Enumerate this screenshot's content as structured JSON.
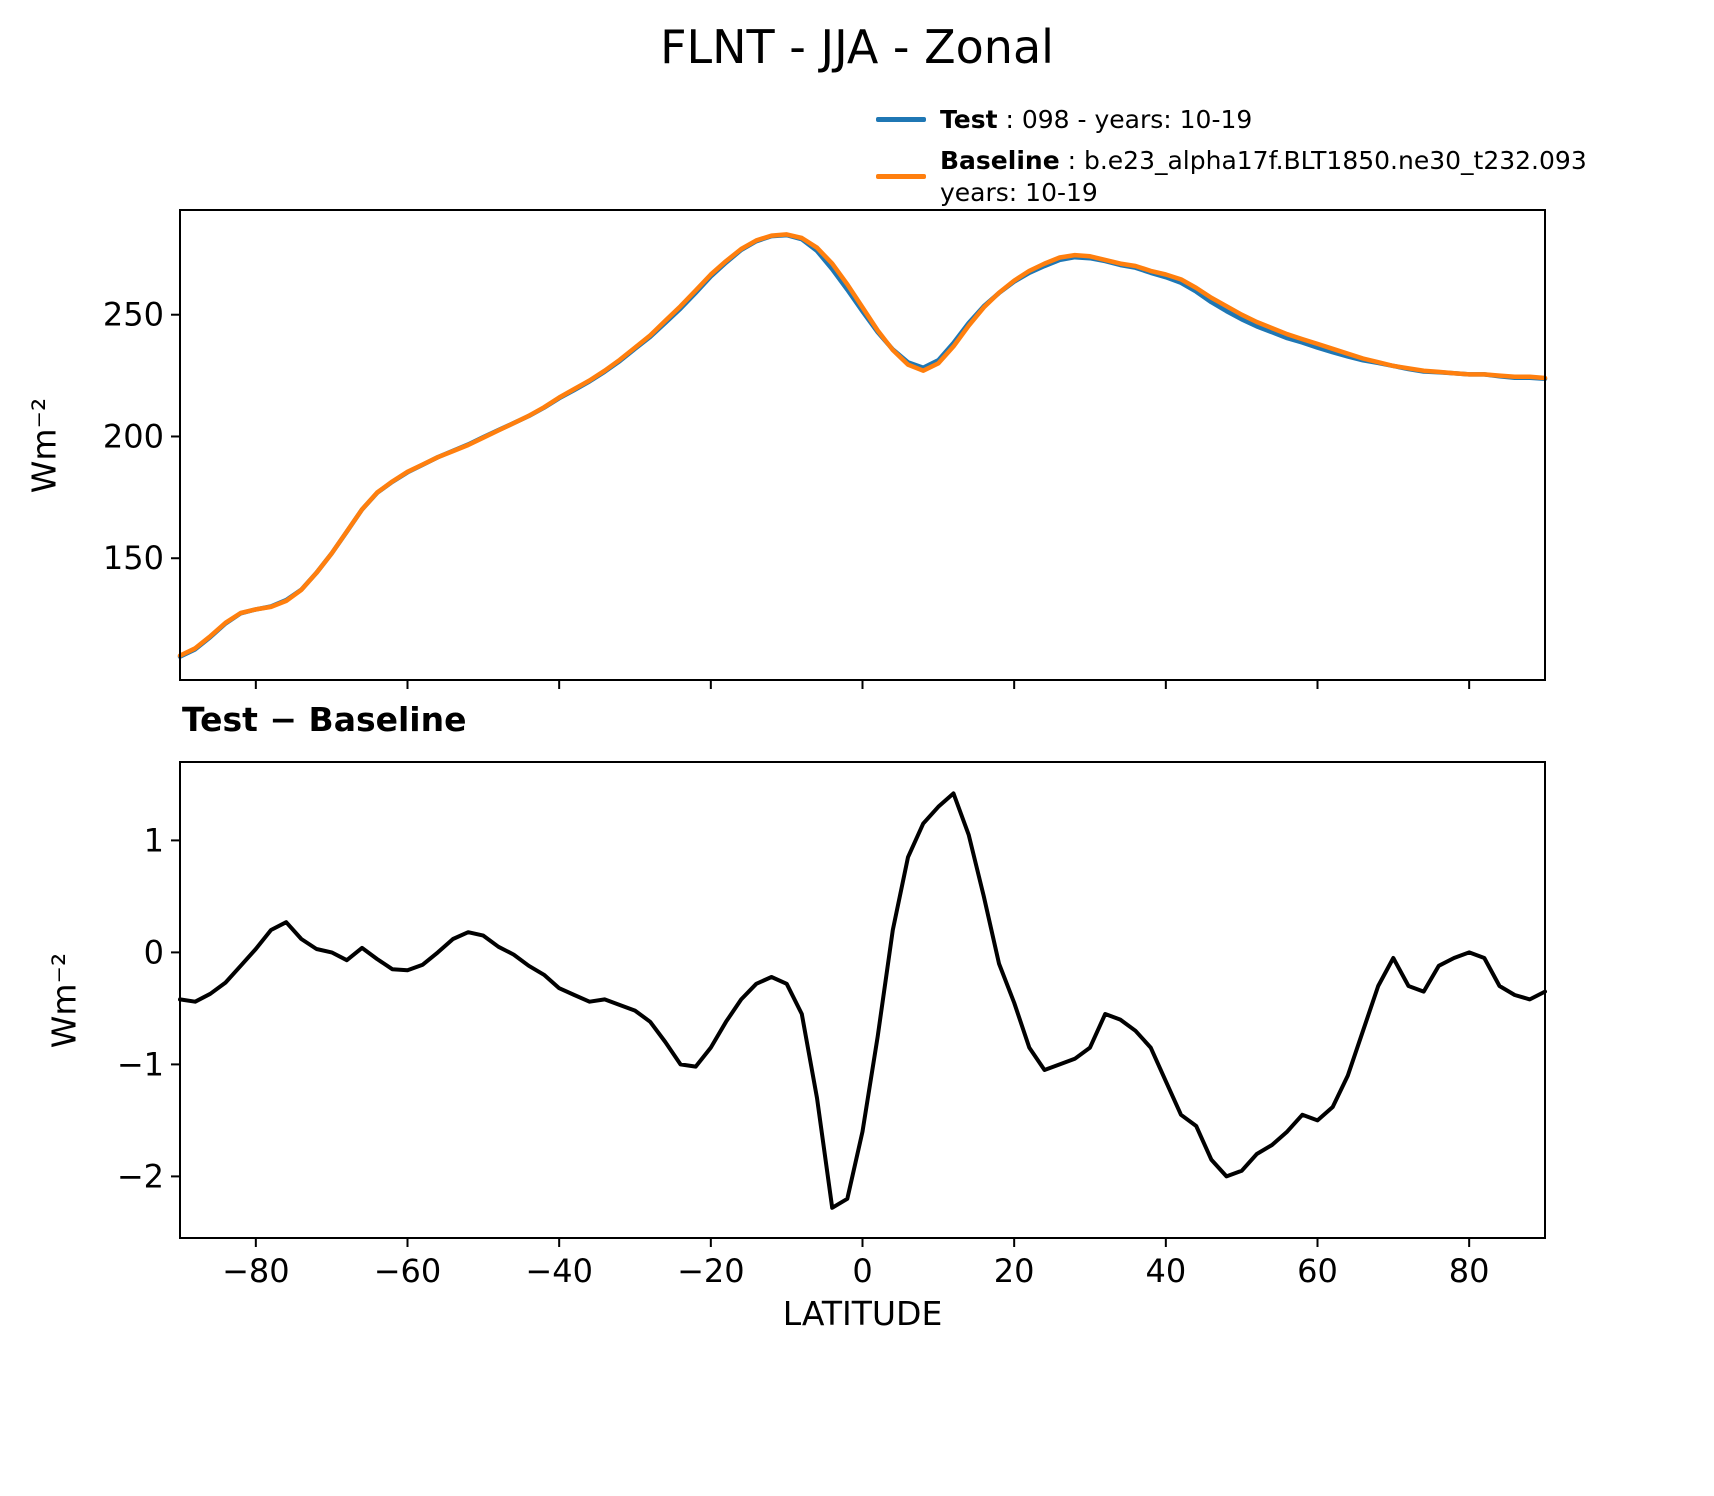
{
  "title": "FLNT - JJA - Zonal",
  "legend": {
    "items": [
      {
        "name": "Test",
        "text": " : 098 - years: 10-19",
        "color": "#1f77b4"
      },
      {
        "name": "Baseline",
        "text": " : b.e23_alpha17f.BLT1850.ne30_t232.093\nyears: 10-19",
        "color": "#ff7f0e"
      }
    ]
  },
  "chart_data": [
    {
      "type": "line",
      "title": "FLNT - JJA - Zonal",
      "xlabel": "",
      "ylabel": "Wm⁻²",
      "xlim": [
        -90,
        90
      ],
      "ylim": [
        100,
        293
      ],
      "xticks": [
        -80,
        -60,
        -40,
        -20,
        0,
        20,
        40,
        60,
        80
      ],
      "yticks": [
        150,
        200,
        250
      ],
      "grid": false,
      "legend_position": "upper right, above axes",
      "x": [
        -90,
        -88,
        -86,
        -84,
        -82,
        -80,
        -78,
        -76,
        -74,
        -72,
        -70,
        -68,
        -66,
        -64,
        -62,
        -60,
        -58,
        -56,
        -54,
        -52,
        -50,
        -48,
        -46,
        -44,
        -42,
        -40,
        -38,
        -36,
        -34,
        -32,
        -30,
        -28,
        -26,
        -24,
        -22,
        -20,
        -18,
        -16,
        -14,
        -12,
        -10,
        -8,
        -6,
        -4,
        -2,
        0,
        2,
        4,
        6,
        8,
        10,
        12,
        14,
        16,
        18,
        20,
        22,
        24,
        26,
        28,
        30,
        32,
        34,
        36,
        38,
        40,
        42,
        44,
        46,
        48,
        50,
        52,
        54,
        56,
        58,
        60,
        62,
        64,
        66,
        68,
        70,
        72,
        74,
        76,
        78,
        80,
        82,
        84,
        86,
        88,
        90
      ],
      "series": [
        {
          "name": "Test",
          "color": "#1f77b4",
          "values": [
            109.6,
            112.6,
            117.6,
            123.2,
            127.4,
            129.0,
            130.2,
            132.8,
            137.1,
            144.0,
            152.0,
            160.9,
            170.0,
            176.9,
            181.4,
            185.3,
            188.4,
            191.5,
            194.1,
            196.7,
            199.7,
            202.6,
            205.5,
            208.4,
            211.8,
            215.7,
            219.1,
            222.6,
            226.6,
            231.0,
            236.0,
            240.9,
            246.7,
            252.5,
            259.0,
            265.7,
            271.4,
            276.6,
            280.2,
            282.3,
            282.7,
            281.0,
            276.2,
            268.7,
            260.3,
            251.4,
            242.8,
            235.7,
            230.4,
            228.2,
            231.3,
            238.4,
            246.6,
            253.5,
            258.9,
            263.6,
            267.2,
            270.0,
            272.5,
            273.6,
            273.2,
            272.0,
            270.4,
            269.3,
            267.2,
            265.4,
            263.1,
            259.5,
            255.2,
            251.5,
            248.1,
            245.2,
            242.8,
            240.4,
            238.6,
            236.5,
            234.6,
            232.9,
            231.3,
            230.2,
            229.0,
            227.7,
            226.7,
            226.4,
            226.0,
            225.5,
            225.5,
            224.7,
            224.1,
            224.1,
            223.7
          ]
        },
        {
          "name": "Baseline",
          "color": "#ff7f0e",
          "values": [
            110.0,
            113.0,
            118.0,
            123.5,
            127.5,
            129.0,
            130.0,
            132.5,
            137.0,
            144.0,
            152.0,
            161.0,
            170.0,
            177.0,
            181.5,
            185.5,
            188.5,
            191.5,
            194.0,
            196.5,
            199.5,
            202.5,
            205.5,
            208.5,
            212.0,
            216.0,
            219.5,
            223.0,
            227.0,
            231.5,
            236.5,
            241.5,
            247.5,
            253.5,
            260.0,
            266.5,
            272.0,
            277.0,
            280.5,
            282.5,
            283.0,
            281.5,
            277.5,
            271.0,
            262.5,
            253.0,
            243.5,
            235.5,
            229.5,
            227.0,
            230.0,
            237.0,
            245.5,
            253.0,
            259.0,
            264.0,
            268.0,
            271.0,
            273.5,
            274.5,
            274.0,
            272.5,
            271.0,
            270.0,
            268.0,
            266.5,
            264.5,
            261.0,
            257.0,
            253.5,
            250.0,
            247.0,
            244.5,
            242.0,
            240.0,
            238.0,
            236.0,
            234.0,
            232.0,
            230.5,
            229.0,
            228.0,
            227.0,
            226.5,
            226.0,
            225.5,
            225.5,
            225.0,
            224.5,
            224.5,
            224.0
          ]
        }
      ]
    },
    {
      "type": "line",
      "title": "Test − Baseline",
      "xlabel": "LATITUDE",
      "ylabel": "Wm⁻²",
      "xlim": [
        -90,
        90
      ],
      "ylim": [
        -2.55,
        1.7
      ],
      "xticks": [
        -80,
        -60,
        -40,
        -20,
        0,
        20,
        40,
        60,
        80
      ],
      "yticks": [
        -2,
        -1,
        0,
        1
      ],
      "grid": false,
      "x": [
        -90,
        -88,
        -86,
        -84,
        -82,
        -80,
        -78,
        -76,
        -74,
        -72,
        -70,
        -68,
        -66,
        -64,
        -62,
        -60,
        -58,
        -56,
        -54,
        -52,
        -50,
        -48,
        -46,
        -44,
        -42,
        -40,
        -38,
        -36,
        -34,
        -32,
        -30,
        -28,
        -26,
        -24,
        -22,
        -20,
        -18,
        -16,
        -14,
        -12,
        -10,
        -8,
        -6,
        -4,
        -2,
        0,
        2,
        4,
        6,
        8,
        10,
        12,
        14,
        16,
        18,
        20,
        22,
        24,
        26,
        28,
        30,
        32,
        34,
        36,
        38,
        40,
        42,
        44,
        46,
        48,
        50,
        52,
        54,
        56,
        58,
        60,
        62,
        64,
        66,
        68,
        70,
        72,
        74,
        76,
        78,
        80,
        82,
        84,
        86,
        88,
        90
      ],
      "series": [
        {
          "name": "Test - Baseline",
          "color": "#000000",
          "values": [
            -0.42,
            -0.44,
            -0.37,
            -0.27,
            -0.12,
            0.03,
            0.2,
            0.27,
            0.12,
            0.03,
            0.0,
            -0.07,
            0.04,
            -0.06,
            -0.15,
            -0.16,
            -0.11,
            0.0,
            0.12,
            0.18,
            0.15,
            0.05,
            -0.02,
            -0.12,
            -0.2,
            -0.32,
            -0.38,
            -0.44,
            -0.42,
            -0.47,
            -0.52,
            -0.62,
            -0.8,
            -1.0,
            -1.02,
            -0.85,
            -0.62,
            -0.42,
            -0.28,
            -0.22,
            -0.28,
            -0.55,
            -1.3,
            -2.28,
            -2.2,
            -1.6,
            -0.75,
            0.2,
            0.85,
            1.15,
            1.3,
            1.42,
            1.05,
            0.5,
            -0.1,
            -0.45,
            -0.85,
            -1.05,
            -1.0,
            -0.95,
            -0.85,
            -0.55,
            -0.6,
            -0.7,
            -0.85,
            -1.15,
            -1.45,
            -1.55,
            -1.85,
            -2.0,
            -1.95,
            -1.8,
            -1.72,
            -1.6,
            -1.45,
            -1.5,
            -1.38,
            -1.1,
            -0.7,
            -0.3,
            -0.05,
            -0.3,
            -0.35,
            -0.12,
            -0.05,
            0.0,
            -0.05,
            -0.3,
            -0.38,
            -0.42,
            -0.35
          ]
        }
      ]
    }
  ]
}
